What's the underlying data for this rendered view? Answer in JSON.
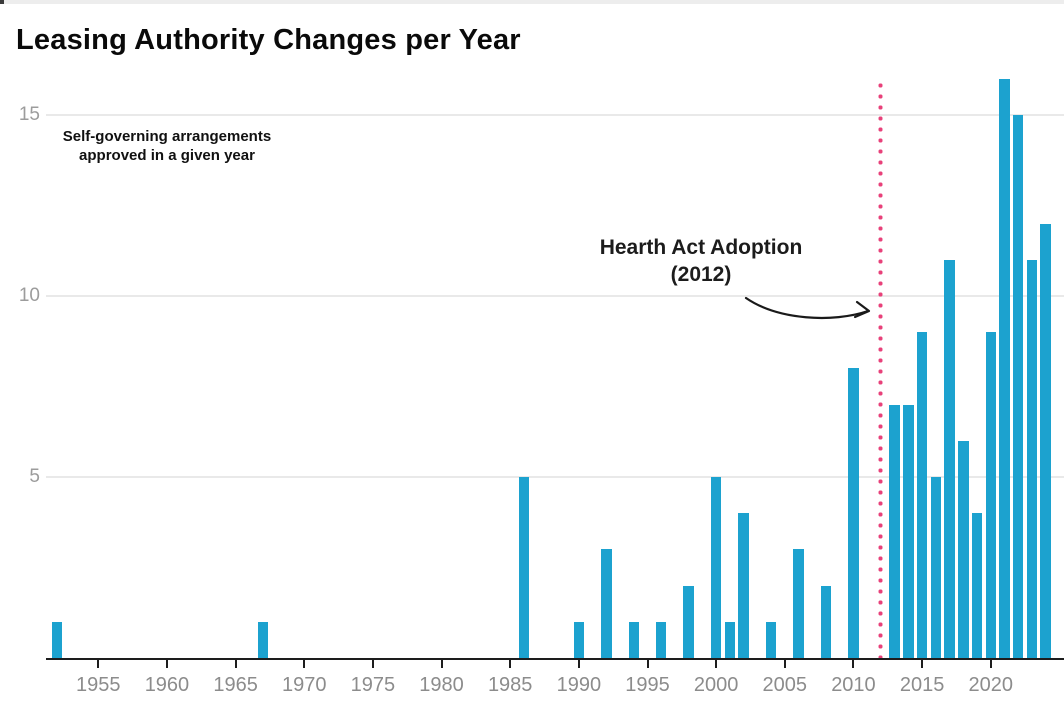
{
  "title": "Leasing Authority Changes per Year",
  "note": {
    "line1": "Self-governing arrangements",
    "line2": "approved in a given year"
  },
  "annotation": {
    "line1": "Hearth Act Adoption",
    "line2": "(2012)"
  },
  "chart_data": {
    "type": "bar",
    "title": "Leasing Authority Changes per Year",
    "subtitle": "Self-governing arrangements approved in a given year",
    "xlabel": "",
    "ylabel": "",
    "x_ticks": [
      1955,
      1960,
      1965,
      1970,
      1975,
      1980,
      1985,
      1990,
      1995,
      2000,
      2005,
      2010,
      2015,
      2020
    ],
    "y_ticks": [
      5,
      10,
      15
    ],
    "xlim": [
      1951,
      2025.5
    ],
    "ylim": [
      0,
      16.5
    ],
    "grid": "horizontal-y",
    "legend": "none",
    "bar_color": "#1ca2cf",
    "event_line": {
      "x": 2012,
      "style": "dotted",
      "color": "#e8417a",
      "label": "Hearth Act Adoption (2012)"
    },
    "points": [
      {
        "year": 1952,
        "value": 1
      },
      {
        "year": 1967,
        "value": 1
      },
      {
        "year": 1986,
        "value": 5
      },
      {
        "year": 1990,
        "value": 1
      },
      {
        "year": 1992,
        "value": 3
      },
      {
        "year": 1994,
        "value": 1
      },
      {
        "year": 1996,
        "value": 1
      },
      {
        "year": 1998,
        "value": 2
      },
      {
        "year": 2000,
        "value": 5
      },
      {
        "year": 2001,
        "value": 1
      },
      {
        "year": 2002,
        "value": 4
      },
      {
        "year": 2004,
        "value": 1
      },
      {
        "year": 2006,
        "value": 3
      },
      {
        "year": 2008,
        "value": 2
      },
      {
        "year": 2010,
        "value": 8
      },
      {
        "year": 2013,
        "value": 7
      },
      {
        "year": 2014,
        "value": 7
      },
      {
        "year": 2015,
        "value": 9
      },
      {
        "year": 2016,
        "value": 5
      },
      {
        "year": 2017,
        "value": 11
      },
      {
        "year": 2018,
        "value": 6
      },
      {
        "year": 2019,
        "value": 4
      },
      {
        "year": 2020,
        "value": 9
      },
      {
        "year": 2021,
        "value": 16
      },
      {
        "year": 2022,
        "value": 15
      },
      {
        "year": 2023,
        "value": 11
      },
      {
        "year": 2024,
        "value": 12
      }
    ]
  }
}
